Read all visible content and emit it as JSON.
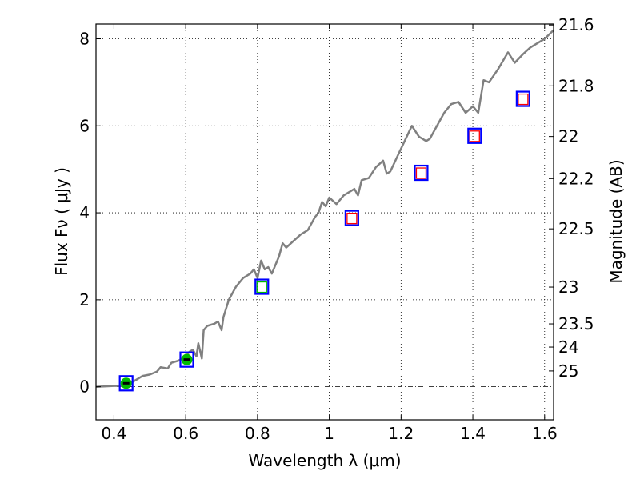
{
  "chart_data": {
    "type": "line",
    "title": "",
    "xlabel": "Wavelength  λ (μm)",
    "ylabel": "Flux  Fν  ( μJy )",
    "y2label": "Magnitude (AB)",
    "xlim": [
      0.35,
      1.625
    ],
    "ylim": [
      -0.76,
      8.34
    ],
    "grid": true,
    "xticks": [
      0.4,
      0.6,
      0.8,
      1.0,
      1.2,
      1.4,
      1.6
    ],
    "xtick_labels": [
      "0.4",
      "0.6",
      "0.8",
      "1",
      "1.2",
      "1.4",
      "1.6"
    ],
    "yticks": [
      0,
      2,
      4,
      6,
      8
    ],
    "ytick_labels": [
      "0",
      "2",
      "4",
      "6",
      "8"
    ],
    "y2ticks": [
      21.6,
      21.8,
      22,
      22.2,
      22.5,
      23,
      23.5,
      24,
      25
    ],
    "y2tick_labels": [
      "21.6",
      "21.8",
      "22",
      "22.2",
      "22.5",
      "23",
      "23.5",
      "24",
      "25"
    ],
    "y2_zero_point_ab": 23.9,
    "colors": {
      "spectrum": "#808080",
      "outer_box": "#0000ff",
      "inner_red": "#ff0000",
      "inner_green": "#00bb00",
      "circle": "#00bb00"
    },
    "spectrum": {
      "x": [
        0.35,
        0.4,
        0.42,
        0.44,
        0.46,
        0.48,
        0.5,
        0.52,
        0.53,
        0.55,
        0.56,
        0.58,
        0.6,
        0.61,
        0.62,
        0.63,
        0.635,
        0.645,
        0.65,
        0.66,
        0.68,
        0.69,
        0.7,
        0.705,
        0.72,
        0.74,
        0.76,
        0.78,
        0.79,
        0.8,
        0.81,
        0.82,
        0.83,
        0.84,
        0.86,
        0.87,
        0.88,
        0.9,
        0.92,
        0.94,
        0.96,
        0.97,
        0.98,
        0.99,
        1.0,
        1.02,
        1.04,
        1.06,
        1.07,
        1.08,
        1.09,
        1.11,
        1.13,
        1.15,
        1.16,
        1.17,
        1.19,
        1.21,
        1.23,
        1.25,
        1.27,
        1.28,
        1.3,
        1.32,
        1.34,
        1.36,
        1.38,
        1.4,
        1.415,
        1.43,
        1.445,
        1.47,
        1.498,
        1.517,
        1.54,
        1.56,
        1.58,
        1.6,
        1.625
      ],
      "y": [
        0.0,
        0.02,
        0.02,
        0.05,
        0.15,
        0.25,
        0.28,
        0.35,
        0.45,
        0.42,
        0.55,
        0.6,
        0.7,
        0.8,
        0.85,
        0.7,
        1.0,
        0.65,
        1.3,
        1.4,
        1.45,
        1.5,
        1.3,
        1.6,
        2.0,
        2.3,
        2.5,
        2.6,
        2.7,
        2.5,
        2.9,
        2.7,
        2.75,
        2.6,
        3.0,
        3.3,
        3.2,
        3.35,
        3.5,
        3.6,
        3.9,
        4.0,
        4.25,
        4.15,
        4.35,
        4.2,
        4.4,
        4.5,
        4.55,
        4.4,
        4.75,
        4.8,
        5.05,
        5.2,
        4.9,
        4.95,
        5.3,
        5.65,
        6.0,
        5.75,
        5.65,
        5.7,
        6.0,
        6.3,
        6.5,
        6.55,
        6.3,
        6.45,
        6.3,
        7.05,
        7.0,
        7.3,
        7.69,
        7.45,
        7.65,
        7.8,
        7.9,
        8.0,
        8.2
      ]
    },
    "photometry": [
      {
        "x": 0.434,
        "y": 0.08,
        "inner": "circle"
      },
      {
        "x": 0.603,
        "y": 0.625,
        "inner": "circle"
      },
      {
        "x": 0.812,
        "y": 2.3,
        "inner": "green"
      },
      {
        "x": 1.063,
        "y": 3.88,
        "inner": "red"
      },
      {
        "x": 1.256,
        "y": 4.92,
        "inner": "red"
      },
      {
        "x": 1.405,
        "y": 5.77,
        "inner": "red"
      },
      {
        "x": 1.54,
        "y": 6.62,
        "inner": "red"
      }
    ]
  }
}
